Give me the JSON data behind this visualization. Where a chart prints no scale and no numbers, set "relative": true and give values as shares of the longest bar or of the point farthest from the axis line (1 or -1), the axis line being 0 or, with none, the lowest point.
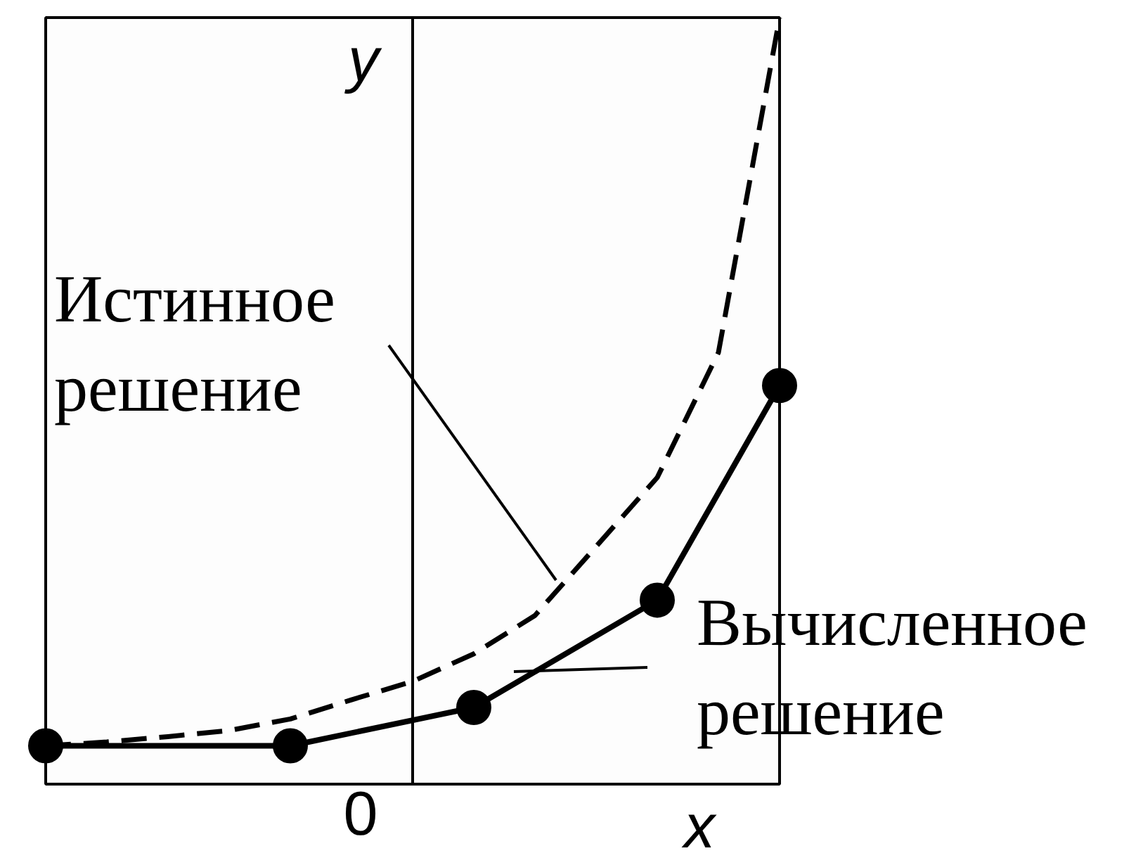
{
  "chart_data": {
    "type": "line",
    "relative": true,
    "xlabel": "x",
    "ylabel": "y",
    "grid": false,
    "categories": [
      null,
      null,
      null,
      null,
      null,
      null,
      null,
      null,
      null,
      null,
      null,
      null,
      null
    ],
    "series": [
      {
        "color": "#000000",
        "line_style": "dashed",
        "marker": "none",
        "values": [
          0.05,
          0.055,
          0.062,
          0.07,
          0.085,
          0.11,
          0.134,
          0.17,
          0.22,
          0.31,
          0.4,
          0.563,
          1.0
        ]
      },
      {
        "color": "#000000",
        "line_style": "solid",
        "marker": "circle",
        "values": [
          0.05,
          null,
          null,
          null,
          0.05,
          null,
          null,
          0.1,
          null,
          null,
          0.24,
          null,
          0.52
        ]
      }
    ],
    "annotations": [
      "0",
      "Истинное решение",
      "Вычисленное решение"
    ]
  }
}
